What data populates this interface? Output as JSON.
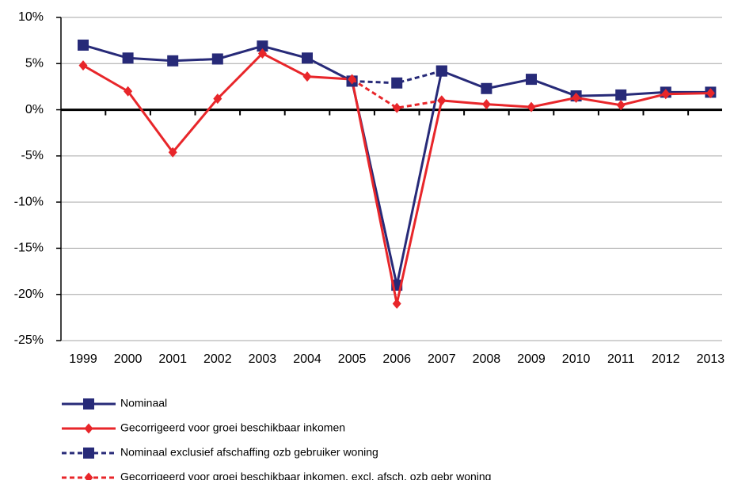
{
  "chart_data": {
    "type": "line",
    "categories": [
      "1999",
      "2000",
      "2001",
      "2002",
      "2003",
      "2004",
      "2005",
      "2006",
      "2007",
      "2008",
      "2009",
      "2010",
      "2011",
      "2012",
      "2013"
    ],
    "series": [
      {
        "name": "Nominaal",
        "color": "#272a78",
        "dashed": false,
        "marker": "square",
        "values": [
          7.0,
          5.6,
          5.3,
          5.5,
          6.9,
          5.6,
          3.1,
          -19.0,
          4.2,
          2.3,
          3.3,
          1.5,
          1.6,
          1.9,
          1.9
        ]
      },
      {
        "name": "Gecorrigeerd voor groei beschikbaar inkomen",
        "color": "#e8262a",
        "dashed": false,
        "marker": "diamond",
        "values": [
          4.8,
          2.0,
          -4.6,
          1.2,
          6.1,
          3.6,
          3.3,
          -21.0,
          1.0,
          0.6,
          0.3,
          1.3,
          0.5,
          1.7,
          1.8
        ]
      },
      {
        "name": "Nominaal exclusief afschaffing ozb gebruiker woning",
        "color": "#272a78",
        "dashed": true,
        "marker": "square",
        "values": [
          null,
          null,
          null,
          null,
          null,
          null,
          3.1,
          2.9,
          4.2,
          null,
          null,
          null,
          null,
          null,
          null
        ]
      },
      {
        "name": "Gecorrigeerd voor groei beschikbaar inkomen, excl. afsch. ozb gebr woning",
        "color": "#e8262a",
        "dashed": true,
        "marker": "diamond",
        "values": [
          null,
          null,
          null,
          null,
          null,
          null,
          3.3,
          0.2,
          1.0,
          null,
          null,
          null,
          null,
          null,
          null
        ]
      }
    ],
    "ylim": [
      -25,
      10
    ],
    "yticks": [
      {
        "value": 10,
        "label": "10%"
      },
      {
        "value": 5,
        "label": "5%"
      },
      {
        "value": 0,
        "label": "0%"
      },
      {
        "value": -5,
        "label": "-5%"
      },
      {
        "value": -10,
        "label": "-10%"
      },
      {
        "value": -15,
        "label": "-15%"
      },
      {
        "value": -20,
        "label": "-20%"
      },
      {
        "value": -25,
        "label": "-25%"
      }
    ],
    "grid": true
  }
}
